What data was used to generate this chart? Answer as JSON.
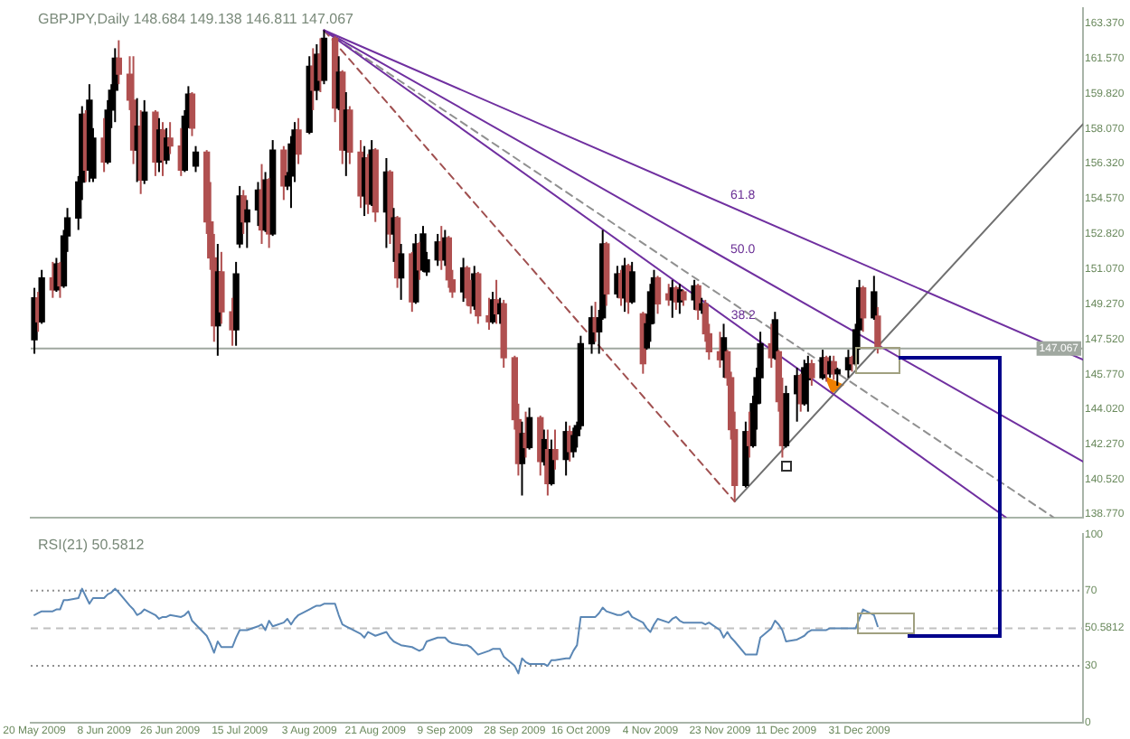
{
  "chart_data": [
    {
      "type": "candlestick",
      "title": "GBPJPY,Daily 148.684 149.138 146.811 147.067",
      "marker": "none",
      "tick_labels": "y",
      "x": [
        "2009-05-20",
        "2009-05-21",
        "2009-05-22",
        "2009-05-25",
        "2009-05-26",
        "2009-05-27",
        "2009-05-28",
        "2009-05-29",
        "2009-06-01",
        "2009-06-02",
        "2009-06-03",
        "2009-06-04",
        "2009-06-05",
        "2009-06-08",
        "2009-06-09",
        "2009-06-10",
        "2009-06-11",
        "2009-06-12",
        "2009-06-15",
        "2009-06-16",
        "2009-06-17",
        "2009-06-18",
        "2009-06-19",
        "2009-06-22",
        "2009-06-23",
        "2009-06-24",
        "2009-06-25",
        "2009-06-26",
        "2009-06-29",
        "2009-06-30",
        "2009-07-01",
        "2009-07-02",
        "2009-07-03",
        "2009-07-06",
        "2009-07-07",
        "2009-07-08",
        "2009-07-09",
        "2009-07-10",
        "2009-07-13",
        "2009-07-14",
        "2009-07-15",
        "2009-07-16",
        "2009-07-17",
        "2009-07-20",
        "2009-07-21",
        "2009-07-22",
        "2009-07-23",
        "2009-07-24",
        "2009-07-27",
        "2009-07-28",
        "2009-07-29",
        "2009-07-30",
        "2009-07-31",
        "2009-08-03",
        "2009-08-04",
        "2009-08-05",
        "2009-08-06",
        "2009-08-07",
        "2009-08-10",
        "2009-08-11",
        "2009-08-12",
        "2009-08-13",
        "2009-08-14",
        "2009-08-17",
        "2009-08-18",
        "2009-08-19",
        "2009-08-20",
        "2009-08-21",
        "2009-08-24",
        "2009-08-25",
        "2009-08-26",
        "2009-08-27",
        "2009-08-28",
        "2009-08-31",
        "2009-09-01",
        "2009-09-02",
        "2009-09-03",
        "2009-09-04",
        "2009-09-07",
        "2009-09-08",
        "2009-09-09",
        "2009-09-10",
        "2009-09-11",
        "2009-09-14",
        "2009-09-15",
        "2009-09-16",
        "2009-09-17",
        "2009-09-18",
        "2009-09-21",
        "2009-09-22",
        "2009-09-23",
        "2009-09-24",
        "2009-09-25",
        "2009-09-28",
        "2009-09-29",
        "2009-09-30",
        "2009-10-01",
        "2009-10-02",
        "2009-10-05",
        "2009-10-06",
        "2009-10-07",
        "2009-10-08",
        "2009-10-09",
        "2009-10-12",
        "2009-10-13",
        "2009-10-14",
        "2009-10-15",
        "2009-10-16",
        "2009-10-19",
        "2009-10-20",
        "2009-10-21",
        "2009-10-22",
        "2009-10-23",
        "2009-10-26",
        "2009-10-27",
        "2009-10-28",
        "2009-10-29",
        "2009-10-30",
        "2009-11-02",
        "2009-11-03",
        "2009-11-04",
        "2009-11-05",
        "2009-11-06",
        "2009-11-09",
        "2009-11-10",
        "2009-11-11",
        "2009-11-12",
        "2009-11-13",
        "2009-11-16",
        "2009-11-17",
        "2009-11-18",
        "2009-11-19",
        "2009-11-20",
        "2009-11-23",
        "2009-11-24",
        "2009-11-25",
        "2009-11-26",
        "2009-11-27",
        "2009-11-30",
        "2009-12-01",
        "2009-12-02",
        "2009-12-03",
        "2009-12-04",
        "2009-12-07",
        "2009-12-08",
        "2009-12-09",
        "2009-12-10",
        "2009-12-11",
        "2009-12-14",
        "2009-12-15",
        "2009-12-16",
        "2009-12-17",
        "2009-12-18",
        "2009-12-21",
        "2009-12-22",
        "2009-12-23",
        "2009-12-24",
        "2009-12-25",
        "2009-12-28",
        "2009-12-29",
        "2009-12-30",
        "2009-12-31",
        "2010-01-01",
        "2010-01-04",
        "2010-01-05"
      ],
      "ohlc": [
        [
          147.5,
          150.1,
          146.8,
          149.6
        ],
        [
          149.6,
          149.9,
          147.9,
          148.4
        ],
        [
          148.4,
          151.0,
          148.3,
          150.6
        ],
        [
          150.6,
          151.4,
          149.6,
          150.0
        ],
        [
          150.0,
          151.6,
          149.9,
          151.3
        ],
        [
          151.3,
          151.4,
          149.6,
          150.2
        ],
        [
          150.2,
          153.0,
          150.1,
          152.7
        ],
        [
          152.7,
          154.1,
          151.9,
          153.6
        ],
        [
          153.6,
          155.7,
          153.0,
          155.4
        ],
        [
          155.4,
          159.2,
          154.5,
          158.8
        ],
        [
          158.8,
          159.0,
          155.4,
          156.0
        ],
        [
          156.0,
          160.3,
          155.4,
          159.5
        ],
        [
          155.6,
          158.1,
          155.4,
          157.6
        ],
        [
          157.6,
          158.6,
          155.9,
          156.4
        ],
        [
          156.4,
          159.5,
          156.3,
          159.0
        ],
        [
          159.0,
          160.3,
          158.1,
          160.0
        ],
        [
          160.0,
          162.1,
          158.4,
          161.6
        ],
        [
          161.6,
          162.5,
          160.3,
          160.8
        ],
        [
          160.8,
          161.7,
          159.0,
          159.5
        ],
        [
          159.5,
          161.7,
          156.3,
          157.0
        ],
        [
          157.0,
          159.6,
          155.4,
          158.2
        ],
        [
          158.2,
          159.0,
          154.8,
          155.5
        ],
        [
          155.5,
          159.5,
          155.3,
          158.9
        ],
        [
          158.9,
          159.0,
          155.7,
          156.4
        ],
        [
          156.4,
          158.6,
          155.9,
          158.0
        ],
        [
          158.0,
          158.4,
          155.7,
          156.5
        ],
        [
          156.5,
          158.1,
          156.3,
          157.6
        ],
        [
          157.6,
          158.4,
          156.8,
          157.2
        ],
        [
          157.2,
          158.1,
          155.7,
          156.0
        ],
        [
          156.0,
          159.0,
          155.9,
          158.7
        ],
        [
          158.7,
          160.2,
          158.1,
          159.8
        ],
        [
          159.8,
          159.9,
          157.7,
          158.1
        ],
        [
          156.2,
          157.2,
          155.9,
          156.9
        ],
        [
          156.9,
          157.0,
          152.8,
          153.4
        ],
        [
          153.4,
          155.4,
          151.0,
          151.6
        ],
        [
          151.6,
          152.8,
          147.4,
          148.2
        ],
        [
          148.2,
          152.3,
          146.7,
          150.9
        ],
        [
          150.9,
          151.9,
          148.3,
          148.9
        ],
        [
          148.9,
          149.6,
          147.2,
          148.0
        ],
        [
          148.0,
          151.4,
          147.2,
          150.8
        ],
        [
          152.3,
          155.2,
          152.1,
          154.7
        ],
        [
          154.7,
          155.0,
          152.8,
          153.4
        ],
        [
          153.4,
          154.5,
          152.1,
          154.0
        ],
        [
          154.0,
          155.4,
          153.2,
          155.0
        ],
        [
          155.0,
          156.3,
          152.3,
          153.0
        ],
        [
          153.0,
          155.9,
          152.9,
          155.5
        ],
        [
          155.5,
          155.6,
          152.1,
          152.8
        ],
        [
          152.8,
          157.5,
          152.7,
          157.0
        ],
        [
          157.0,
          157.2,
          154.5,
          155.2
        ],
        [
          155.2,
          155.9,
          155.0,
          155.7
        ],
        [
          155.7,
          157.7,
          154.1,
          157.3
        ],
        [
          157.3,
          158.4,
          155.4,
          158.0
        ],
        [
          158.0,
          158.6,
          156.3,
          156.8
        ],
        [
          157.9,
          161.7,
          157.8,
          161.2
        ],
        [
          161.2,
          162.1,
          159.0,
          160.0
        ],
        [
          160.0,
          162.3,
          159.5,
          161.8
        ],
        [
          161.8,
          162.6,
          159.9,
          160.5
        ],
        [
          160.5,
          163.0,
          160.3,
          162.6
        ],
        [
          162.6,
          162.7,
          158.4,
          159.1
        ],
        [
          159.1,
          161.7,
          159.0,
          160.9
        ],
        [
          160.9,
          161.0,
          156.3,
          157.0
        ],
        [
          157.0,
          159.9,
          155.7,
          159.0
        ],
        [
          159.0,
          159.2,
          156.3,
          156.9
        ],
        [
          156.9,
          157.5,
          154.1,
          154.7
        ],
        [
          154.7,
          157.2,
          153.7,
          156.6
        ],
        [
          156.6,
          156.8,
          153.8,
          154.3
        ],
        [
          154.3,
          157.5,
          154.2,
          157.0
        ],
        [
          157.0,
          157.1,
          153.4,
          153.9
        ],
        [
          153.9,
          156.6,
          152.1,
          155.9
        ],
        [
          155.9,
          156.0,
          152.3,
          152.8
        ],
        [
          152.8,
          154.1,
          151.4,
          153.6
        ],
        [
          153.6,
          153.7,
          150.1,
          150.6
        ],
        [
          150.6,
          152.3,
          149.5,
          151.8
        ],
        [
          151.8,
          151.9,
          148.9,
          149.4
        ],
        [
          149.4,
          152.8,
          149.3,
          152.3
        ],
        [
          152.3,
          152.4,
          150.5,
          151.0
        ],
        [
          151.0,
          153.2,
          150.9,
          152.8
        ],
        [
          150.9,
          151.9,
          150.7,
          151.5
        ],
        [
          151.5,
          152.8,
          151.2,
          152.4
        ],
        [
          152.4,
          153.2,
          151.0,
          151.5
        ],
        [
          151.5,
          153.0,
          151.2,
          152.6
        ],
        [
          152.6,
          152.7,
          150.1,
          150.5
        ],
        [
          150.5,
          151.0,
          149.6,
          149.9
        ],
        [
          149.9,
          151.6,
          149.4,
          151.1
        ],
        [
          151.1,
          151.2,
          149.2,
          149.6
        ],
        [
          149.6,
          150.5,
          148.8,
          149.2
        ],
        [
          149.2,
          151.2,
          149.0,
          150.8
        ],
        [
          150.8,
          150.9,
          148.3,
          148.7
        ],
        [
          148.7,
          149.6,
          148.0,
          148.4
        ],
        [
          148.4,
          149.9,
          148.3,
          149.5
        ],
        [
          149.5,
          150.5,
          148.3,
          148.8
        ],
        [
          148.8,
          149.6,
          148.3,
          149.3
        ],
        [
          149.3,
          149.5,
          146.1,
          146.6
        ],
        [
          146.6,
          146.7,
          143.0,
          143.5
        ],
        [
          143.5,
          144.3,
          140.7,
          141.3
        ],
        [
          141.3,
          143.4,
          139.7,
          142.8
        ],
        [
          142.8,
          143.9,
          141.6,
          142.1
        ],
        [
          142.1,
          144.1,
          142.0,
          143.6
        ],
        [
          143.6,
          143.7,
          140.7,
          141.4
        ],
        [
          141.4,
          143.0,
          141.2,
          142.5
        ],
        [
          142.0,
          143.0,
          139.7,
          140.3
        ],
        [
          140.3,
          142.5,
          140.2,
          142.0
        ],
        [
          142.0,
          143.0,
          141.0,
          141.5
        ],
        [
          141.5,
          143.4,
          140.7,
          142.9
        ],
        [
          142.9,
          143.2,
          141.4,
          141.9
        ],
        [
          141.9,
          143.1,
          141.6,
          142.7
        ],
        [
          142.7,
          143.4,
          142.1,
          143.2
        ],
        [
          143.2,
          147.7,
          143.0,
          147.3
        ],
        [
          147.3,
          149.2,
          146.8,
          148.6
        ],
        [
          148.6,
          149.4,
          147.4,
          147.9
        ],
        [
          147.9,
          149.0,
          146.8,
          148.6
        ],
        [
          148.6,
          153.0,
          148.5,
          152.3
        ],
        [
          152.3,
          152.4,
          149.2,
          149.8
        ],
        [
          149.8,
          151.2,
          149.6,
          150.8
        ],
        [
          150.8,
          151.0,
          149.2,
          149.6
        ],
        [
          149.6,
          151.6,
          148.9,
          151.2
        ],
        [
          151.2,
          151.3,
          148.8,
          149.4
        ],
        [
          149.4,
          151.4,
          149.3,
          150.9
        ],
        [
          148.8,
          148.9,
          145.8,
          146.3
        ],
        [
          147.1,
          148.8,
          147.0,
          148.3
        ],
        [
          148.3,
          150.3,
          147.4,
          149.9
        ],
        [
          149.9,
          151.0,
          148.3,
          150.6
        ],
        [
          150.6,
          150.7,
          148.8,
          149.3
        ],
        [
          149.8,
          150.3,
          149.2,
          149.5
        ],
        [
          149.5,
          150.5,
          148.6,
          150.1
        ],
        [
          150.1,
          150.2,
          149.0,
          149.4
        ],
        [
          149.4,
          150.3,
          148.8,
          150.0
        ],
        [
          149.9,
          150.0,
          149.2,
          149.5
        ],
        [
          149.5,
          150.5,
          149.0,
          150.2
        ],
        [
          150.2,
          150.3,
          148.5,
          149.0
        ],
        [
          149.0,
          149.6,
          148.8,
          149.3
        ],
        [
          149.3,
          149.5,
          147.4,
          147.8
        ],
        [
          147.8,
          148.3,
          146.5,
          146.9
        ],
        [
          146.9,
          147.9,
          146.1,
          146.5
        ],
        [
          146.5,
          148.3,
          145.6,
          147.6
        ],
        [
          146.9,
          147.0,
          145.2,
          145.6
        ],
        [
          145.6,
          145.9,
          142.5,
          143.0
        ],
        [
          143.0,
          143.9,
          139.4,
          140.2
        ],
        [
          140.2,
          143.4,
          140.1,
          142.9
        ],
        [
          142.9,
          143.9,
          141.6,
          142.2
        ],
        [
          142.2,
          144.7,
          142.1,
          144.3
        ],
        [
          144.3,
          146.1,
          143.0,
          145.6
        ],
        [
          145.6,
          147.9,
          144.3,
          147.3
        ],
        [
          147.3,
          148.3,
          146.1,
          146.6
        ],
        [
          146.6,
          148.9,
          146.5,
          148.5
        ],
        [
          146.9,
          147.0,
          143.9,
          144.4
        ],
        [
          144.4,
          145.6,
          141.6,
          142.2
        ],
        [
          142.2,
          145.2,
          142.1,
          144.8
        ],
        [
          144.8,
          146.1,
          143.4,
          145.7
        ],
        [
          145.7,
          145.8,
          143.9,
          144.3
        ],
        [
          144.3,
          146.5,
          144.2,
          146.1
        ],
        [
          145.5,
          146.7,
          143.9,
          146.3
        ],
        [
          146.3,
          146.5,
          145.2,
          145.6
        ],
        [
          145.6,
          147.0,
          145.5,
          146.6
        ],
        [
          146.6,
          146.7,
          145.4,
          145.8
        ],
        [
          145.8,
          146.7,
          145.6,
          146.4
        ],
        [
          146.4,
          146.7,
          145.5,
          145.8
        ],
        [
          145.8,
          146.1,
          145.2,
          146.0
        ],
        [
          146.0,
          147.0,
          145.6,
          146.6
        ],
        [
          146.6,
          146.7,
          145.9,
          146.3
        ],
        [
          146.3,
          148.3,
          146.2,
          148.0
        ],
        [
          148.0,
          150.5,
          147.0,
          150.1
        ],
        [
          150.1,
          150.2,
          147.9,
          148.6
        ],
        [
          148.6,
          150.7,
          148.5,
          149.9
        ],
        [
          148.684,
          149.138,
          146.811,
          147.067
        ]
      ],
      "colors": [
        "#000000",
        "#b05050",
        "#000000",
        "#b05050",
        "#000000",
        "#b05050",
        "#000000",
        "#000000",
        "#000000",
        "#000000",
        "#b05050",
        "#000000",
        "#000000",
        "#b05050",
        "#000000",
        "#000000",
        "#000000",
        "#b05050",
        "#b05050",
        "#b05050",
        "#000000",
        "#b05050",
        "#000000",
        "#b05050",
        "#000000",
        "#b05050",
        "#000000",
        "#b05050",
        "#b05050",
        "#000000",
        "#000000",
        "#b05050",
        "#000000",
        "#b05050",
        "#b05050",
        "#b05050",
        "#000000",
        "#b05050",
        "#b05050",
        "#000000",
        "#000000",
        "#b05050",
        "#000000",
        "#000000",
        "#b05050",
        "#000000",
        "#b05050",
        "#000000",
        "#b05050",
        "#000000",
        "#000000",
        "#000000",
        "#b05050",
        "#000000",
        "#b05050",
        "#000000",
        "#b05050",
        "#000000",
        "#b05050",
        "#000000",
        "#b05050",
        "#000000",
        "#b05050",
        "#b05050",
        "#000000",
        "#b05050",
        "#000000",
        "#b05050",
        "#000000",
        "#b05050",
        "#000000",
        "#b05050",
        "#000000",
        "#b05050",
        "#000000",
        "#b05050",
        "#000000",
        "#000000",
        "#000000",
        "#b05050",
        "#000000",
        "#b05050",
        "#b05050",
        "#000000",
        "#b05050",
        "#b05050",
        "#000000",
        "#b05050",
        "#b05050",
        "#000000",
        "#b05050",
        "#000000",
        "#b05050",
        "#b05050",
        "#b05050",
        "#000000",
        "#b05050",
        "#000000",
        "#b05050",
        "#000000",
        "#b05050",
        "#000000",
        "#b05050",
        "#000000",
        "#b05050",
        "#000000",
        "#000000",
        "#000000",
        "#000000",
        "#b05050",
        "#000000",
        "#000000",
        "#b05050",
        "#000000",
        "#b05050",
        "#000000",
        "#b05050",
        "#000000",
        "#b05050",
        "#000000",
        "#000000",
        "#000000",
        "#b05050",
        "#b05050",
        "#000000",
        "#b05050",
        "#000000",
        "#b05050",
        "#000000",
        "#b05050",
        "#000000",
        "#b05050",
        "#b05050",
        "#b05050",
        "#000000",
        "#b05050",
        "#b05050",
        "#b05050",
        "#000000",
        "#b05050",
        "#000000",
        "#000000",
        "#000000",
        "#b05050",
        "#000000",
        "#b05050",
        "#b05050",
        "#000000",
        "#000000",
        "#b05050",
        "#000000",
        "#000000",
        "#b05050",
        "#000000",
        "#b05050",
        "#000000",
        "#b05050",
        "#000000",
        "#000000",
        "#b05050",
        "#000000",
        "#000000",
        "#b05050",
        "#000000",
        "#b05050"
      ],
      "series": [
        {
          "type": "line",
          "color": "#7030a0",
          "x": [
            "2009-08-07",
            "2010-03-02"
          ],
          "values": [
            163.0,
            146.5
          ]
        },
        {
          "type": "line",
          "color": "#7030a0",
          "x": [
            "2009-08-07",
            "2010-03-02"
          ],
          "values": [
            163.0,
            141.4
          ]
        },
        {
          "type": "line",
          "color": "#7030a0",
          "x": [
            "2009-08-07",
            "2010-02-09"
          ],
          "values": [
            163.0,
            138.6
          ]
        },
        {
          "type": "line",
          "color": "#909090",
          "line_style": "dashed",
          "x": [
            "2009-08-07",
            "2010-02-22"
          ],
          "values": [
            163.0,
            138.6
          ]
        },
        {
          "type": "line",
          "color": "#a05050",
          "line_style": "dashed",
          "x": [
            "2009-08-07",
            "2009-11-27"
          ],
          "values": [
            163.0,
            139.4
          ]
        },
        {
          "type": "line",
          "color": "#707070",
          "x": [
            "2009-11-27",
            "2010-03-02"
          ],
          "values": [
            139.4,
            158.3
          ]
        }
      ],
      "xlim": [
        "2009-05-19",
        "2010-03-02"
      ],
      "ylim": [
        138.6,
        164.1
      ],
      "yticks": [
        {
          "value": 163.37,
          "label": "163.370"
        },
        {
          "value": 161.57,
          "label": "161.570"
        },
        {
          "value": 159.82,
          "label": "159.820"
        },
        {
          "value": 158.07,
          "label": "158.070"
        },
        {
          "value": 156.32,
          "label": "156.320"
        },
        {
          "value": 154.57,
          "label": "154.570"
        },
        {
          "value": 152.82,
          "label": "152.820"
        },
        {
          "value": 151.07,
          "label": "151.070"
        },
        {
          "value": 149.27,
          "label": "149.270"
        },
        {
          "value": 147.52,
          "label": "147.520"
        },
        {
          "value": 145.77,
          "label": "145.770"
        },
        {
          "value": 144.02,
          "label": "144.020"
        },
        {
          "value": 142.27,
          "label": "142.270"
        },
        {
          "value": 140.52,
          "label": "140.520"
        },
        {
          "value": 138.77,
          "label": "138.770"
        }
      ],
      "ref_lines": [
        {
          "axis": "y",
          "value": 147.067,
          "label": "147.067",
          "color": "#a0a8a0"
        }
      ],
      "annotations": [
        "61.8",
        "50.0",
        {
          "text": "38.2",
          "x": "2009-11-26",
          "y": 148.4
        }
      ]
    },
    {
      "type": "line",
      "title": "RSI(21) 50.5812",
      "marker": "none",
      "x": [
        "2009-05-20",
        "2009-05-21",
        "2009-05-22",
        "2009-05-25",
        "2009-05-26",
        "2009-05-27",
        "2009-05-28",
        "2009-05-29",
        "2009-06-01",
        "2009-06-02",
        "2009-06-03",
        "2009-06-04",
        "2009-06-05",
        "2009-06-08",
        "2009-06-09",
        "2009-06-10",
        "2009-06-11",
        "2009-06-12",
        "2009-06-15",
        "2009-06-16",
        "2009-06-17",
        "2009-06-18",
        "2009-06-19",
        "2009-06-22",
        "2009-06-23",
        "2009-06-24",
        "2009-06-25",
        "2009-06-26",
        "2009-06-29",
        "2009-06-30",
        "2009-07-01",
        "2009-07-02",
        "2009-07-03",
        "2009-07-06",
        "2009-07-07",
        "2009-07-08",
        "2009-07-09",
        "2009-07-10",
        "2009-07-13",
        "2009-07-14",
        "2009-07-15",
        "2009-07-16",
        "2009-07-17",
        "2009-07-20",
        "2009-07-21",
        "2009-07-22",
        "2009-07-23",
        "2009-07-24",
        "2009-07-27",
        "2009-07-28",
        "2009-07-29",
        "2009-07-30",
        "2009-07-31",
        "2009-08-03",
        "2009-08-04",
        "2009-08-05",
        "2009-08-06",
        "2009-08-07",
        "2009-08-10",
        "2009-08-11",
        "2009-08-12",
        "2009-08-13",
        "2009-08-14",
        "2009-08-17",
        "2009-08-18",
        "2009-08-19",
        "2009-08-20",
        "2009-08-21",
        "2009-08-24",
        "2009-08-25",
        "2009-08-26",
        "2009-08-27",
        "2009-08-28",
        "2009-08-31",
        "2009-09-01",
        "2009-09-02",
        "2009-09-03",
        "2009-09-04",
        "2009-09-07",
        "2009-09-08",
        "2009-09-09",
        "2009-09-10",
        "2009-09-11",
        "2009-09-14",
        "2009-09-15",
        "2009-09-16",
        "2009-09-17",
        "2009-09-18",
        "2009-09-21",
        "2009-09-22",
        "2009-09-23",
        "2009-09-24",
        "2009-09-25",
        "2009-09-28",
        "2009-09-29",
        "2009-09-30",
        "2009-10-01",
        "2009-10-02",
        "2009-10-05",
        "2009-10-06",
        "2009-10-07",
        "2009-10-08",
        "2009-10-09",
        "2009-10-12",
        "2009-10-13",
        "2009-10-14",
        "2009-10-15",
        "2009-10-16",
        "2009-10-19",
        "2009-10-20",
        "2009-10-21",
        "2009-10-22",
        "2009-10-23",
        "2009-10-26",
        "2009-10-27",
        "2009-10-28",
        "2009-10-29",
        "2009-10-30",
        "2009-11-02",
        "2009-11-03",
        "2009-11-04",
        "2009-11-05",
        "2009-11-06",
        "2009-11-09",
        "2009-11-10",
        "2009-11-11",
        "2009-11-12",
        "2009-11-13",
        "2009-11-16",
        "2009-11-17",
        "2009-11-18",
        "2009-11-19",
        "2009-11-20",
        "2009-11-23",
        "2009-11-24",
        "2009-11-25",
        "2009-11-26",
        "2009-11-27",
        "2009-11-30",
        "2009-12-01",
        "2009-12-02",
        "2009-12-03",
        "2009-12-04",
        "2009-12-07",
        "2009-12-08",
        "2009-12-09",
        "2009-12-10",
        "2009-12-11",
        "2009-12-14",
        "2009-12-15",
        "2009-12-16",
        "2009-12-17",
        "2009-12-18",
        "2009-12-21",
        "2009-12-22",
        "2009-12-23",
        "2009-12-24",
        "2009-12-25",
        "2009-12-28",
        "2009-12-29",
        "2009-12-30",
        "2009-12-31",
        "2010-01-01",
        "2010-01-04",
        "2010-01-05"
      ],
      "series": [
        {
          "color": "#5b87b5",
          "values": [
            57,
            58,
            59,
            59,
            60,
            60,
            65,
            65,
            66,
            71,
            67,
            63,
            66,
            66,
            68,
            69,
            71,
            69,
            62,
            60,
            57,
            58,
            60,
            57,
            55,
            56,
            56,
            57,
            56,
            57,
            59,
            54,
            52,
            46,
            42,
            37,
            43,
            40,
            40,
            45,
            49,
            49,
            49,
            51,
            52,
            49,
            54,
            51,
            53,
            55,
            52,
            55,
            57,
            60,
            61,
            62,
            62,
            63,
            63,
            57,
            52,
            51,
            50,
            47,
            45,
            48,
            47,
            46,
            48,
            45,
            43,
            42,
            41,
            40,
            39,
            38,
            39,
            43,
            45,
            45,
            45,
            43,
            42,
            41,
            41,
            40,
            38,
            36,
            38,
            39,
            39,
            39,
            35,
            30,
            26,
            34,
            32,
            31,
            31,
            31,
            30,
            33,
            33,
            34,
            34,
            38,
            41,
            56,
            56,
            56,
            58,
            61,
            59,
            57,
            57,
            58,
            59,
            56,
            53,
            50,
            48,
            52,
            55,
            53,
            55,
            56,
            54,
            53,
            53,
            53,
            53,
            52,
            53,
            49,
            45,
            48,
            45,
            43,
            36,
            36,
            36,
            36,
            45,
            50,
            54,
            52,
            49,
            43,
            44,
            45,
            46,
            48,
            49,
            49,
            49,
            50,
            50,
            50,
            50,
            50,
            50,
            55,
            60,
            57,
            51
          ]
        }
      ],
      "xlim": [
        "2009-05-19",
        "2010-03-02"
      ],
      "ylim": [
        0,
        100
      ],
      "yticks": [
        0,
        30,
        {
          "value": 50.5812,
          "label": "50.5812"
        },
        70,
        100
      ],
      "xticks": [
        {
          "value": "2009-05-20",
          "label": "20 May 2009"
        },
        {
          "value": "2009-06-08",
          "label": "8 Jun 2009"
        },
        {
          "value": "2009-06-26",
          "label": "26 Jun 2009"
        },
        {
          "value": "2009-07-15",
          "label": "15 Jul 2009"
        },
        {
          "value": "2009-08-03",
          "label": "3 Aug 2009"
        },
        {
          "value": "2009-08-21",
          "label": "21 Aug 2009"
        },
        {
          "value": "2009-09-09",
          "label": "9 Sep 2009"
        },
        {
          "value": "2009-09-28",
          "label": "28 Sep 2009"
        },
        {
          "value": "2009-10-16",
          "label": "16 Oct 2009"
        },
        {
          "value": "2009-11-04",
          "label": "4 Nov 2009"
        },
        {
          "value": "2009-11-23",
          "label": "23 Nov 2009"
        },
        {
          "value": "2009-12-11",
          "label": "11 Dec 2009"
        },
        {
          "value": "2009-12-31",
          "label": "31 Dec 2009"
        }
      ],
      "ref_lines": [
        {
          "axis": "y",
          "value": 70,
          "color": "#909090",
          "line_style": "dotted"
        },
        {
          "axis": "y",
          "value": 50,
          "color": "#c0c0c0",
          "line_style": "dashed"
        },
        {
          "axis": "y",
          "value": 30,
          "color": "#909090",
          "line_style": "dotted"
        }
      ]
    }
  ]
}
